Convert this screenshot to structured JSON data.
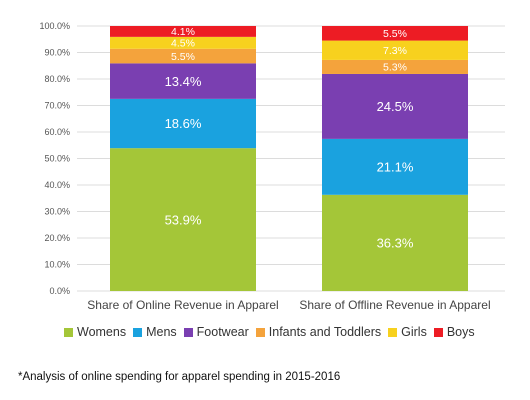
{
  "chart_data": {
    "type": "bar",
    "stacked": true,
    "categories": [
      "Share of Online Revenue in Apparel",
      "Share of Offline Revenue in Apparel"
    ],
    "series": [
      {
        "name": "Womens",
        "values": [
          53.9,
          36.3
        ],
        "labels": [
          "53.9%",
          "36.3%"
        ],
        "color": "#a4c638"
      },
      {
        "name": "Mens",
        "values": [
          18.6,
          21.1
        ],
        "labels": [
          "18.6%",
          "21.1%"
        ],
        "color": "#1aa2df"
      },
      {
        "name": "Footwear",
        "values": [
          13.4,
          24.5
        ],
        "labels": [
          "13.4%",
          "24.5%"
        ],
        "color": "#7a3fb1"
      },
      {
        "name": "Infants and Toddlers",
        "values": [
          5.5,
          5.3
        ],
        "labels": [
          "5.5%",
          "5.3%"
        ],
        "color": "#f4a33c"
      },
      {
        "name": "Girls",
        "values": [
          4.5,
          7.3
        ],
        "labels": [
          "4.5%",
          "7.3%"
        ],
        "color": "#f7d11e"
      },
      {
        "name": "Boys",
        "values": [
          4.1,
          5.5
        ],
        "labels": [
          "4.1%",
          "5.5%"
        ],
        "color": "#ed1c24"
      }
    ],
    "y_ticks": [
      "0.0%",
      "10.0%",
      "20.0%",
      "30.0%",
      "40.0%",
      "50.0%",
      "60.0%",
      "70.0%",
      "80.0%",
      "90.0%",
      "100.0%"
    ],
    "ylim": [
      0,
      100
    ],
    "grid": true,
    "legend_position": "bottom"
  },
  "footnote": "*Analysis of online spending for apparel spending in 2015-2016"
}
